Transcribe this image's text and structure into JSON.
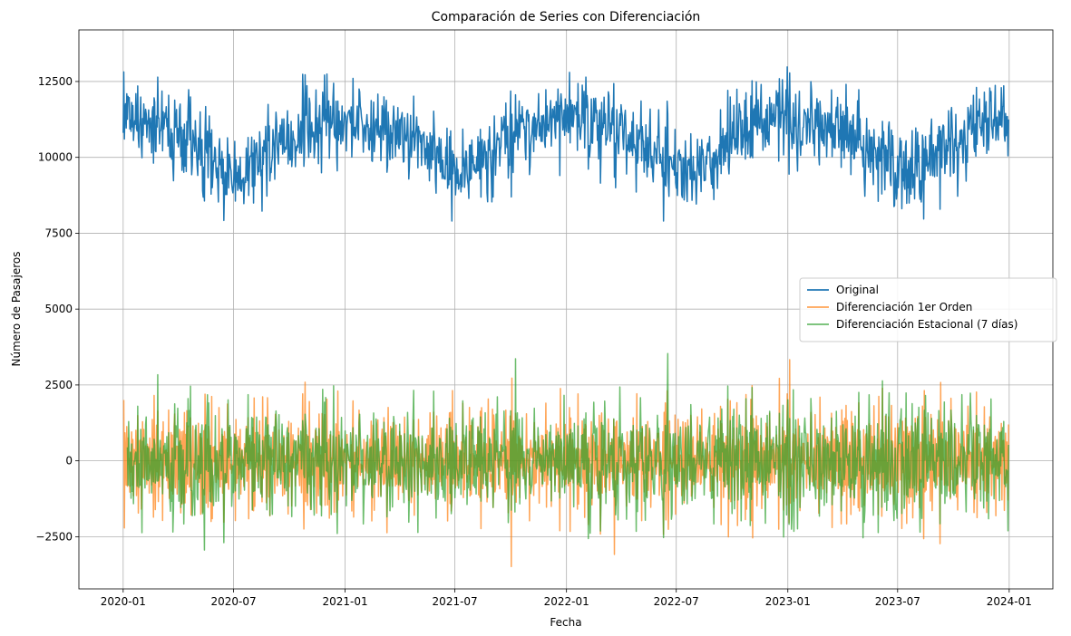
{
  "chart_data": {
    "type": "line",
    "title": "Comparación de Series con Diferenciación",
    "xlabel": "Fecha",
    "ylabel": "Número de Pasajeros",
    "x_start": "2020-01-01",
    "x_end": "2023-12-31",
    "xlim": [
      "2019-10-20",
      "2024-03-13"
    ],
    "ylim": [
      -4220,
      14200
    ],
    "x_ticks": [
      "2020-01",
      "2020-07",
      "2021-01",
      "2021-07",
      "2022-01",
      "2022-07",
      "2023-01",
      "2023-07",
      "2024-01"
    ],
    "y_ticks": [
      -2500,
      0,
      2500,
      5000,
      7500,
      10000,
      12500
    ],
    "y_tick_labels": [
      "−2500",
      "0",
      "2500",
      "5000",
      "7500",
      "10000",
      "12500"
    ],
    "grid": true,
    "legend_position": "center-right",
    "series": [
      {
        "name": "Original",
        "color": "#1f77b4",
        "kind": "original",
        "approx": {
          "mean": 10700,
          "yearly_amplitude": 500,
          "noise_sd": 650,
          "min": 7900,
          "max": 13350
        }
      },
      {
        "name": "Diferenciación 1er Orden",
        "color": "#ff7f0e",
        "kind": "first-difference",
        "approx": {
          "mean": 0,
          "min": -3350,
          "max": 3700
        }
      },
      {
        "name": "Diferenciación Estacional (7 días)",
        "color": "#2ca02c",
        "kind": "seasonal-difference",
        "lag": 7,
        "approx": {
          "mean": 0,
          "min": -3400,
          "max": 3000
        }
      }
    ]
  }
}
